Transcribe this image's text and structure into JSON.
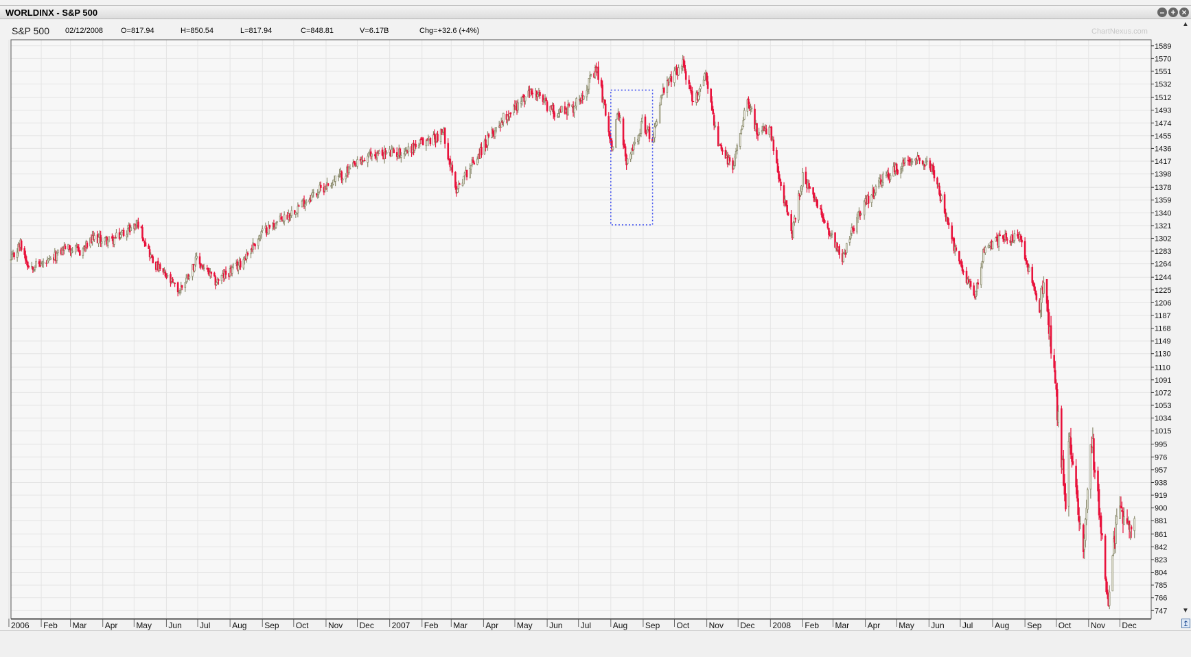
{
  "window": {
    "title": "WORLDINX - S&P 500"
  },
  "infobar": {
    "symbol": "S&P 500",
    "date": "02/12/2008",
    "open": "O=817.94",
    "high": "H=850.54",
    "low": "L=817.94",
    "close": "C=848.81",
    "volume": "V=6.17B",
    "change": "Chg=+32.6 (+4%)"
  },
  "watermark": "ChartNexus.com",
  "colors": {
    "down": "#e8133c",
    "up": "#8b8b6e",
    "grid": "#e4e4e4",
    "highlight_box": "#3b4cf0"
  },
  "chart_data": {
    "type": "candlestick",
    "y_ticks": [
      1589,
      1570,
      1551,
      1532,
      1512,
      1493,
      1474,
      1455,
      1436,
      1417,
      1398,
      1378,
      1359,
      1340,
      1321,
      1302,
      1283,
      1264,
      1244,
      1225,
      1206,
      1187,
      1168,
      1149,
      1130,
      1110,
      1091,
      1072,
      1053,
      1034,
      1015,
      995,
      976,
      957,
      938,
      919,
      900,
      881,
      861,
      842,
      823,
      804,
      785,
      766,
      747
    ],
    "ylim": [
      735,
      1598
    ],
    "x_labels": [
      "2006",
      "Feb",
      "Mar",
      "Apr",
      "May",
      "Jun",
      "Jul",
      "Aug",
      "Sep",
      "Oct",
      "Nov",
      "Dec",
      "2007",
      "Feb",
      "Mar",
      "Apr",
      "May",
      "Jun",
      "Jul",
      "Aug",
      "Sep",
      "Oct",
      "Nov",
      "Dec",
      "2008",
      "Feb",
      "Mar",
      "Apr",
      "May",
      "Jun",
      "Jul",
      "Aug",
      "Sep",
      "Oct",
      "Nov",
      "Dec"
    ],
    "x_range": [
      "2006-01-03",
      "2008-12-31"
    ],
    "grid": true,
    "highlight_box": {
      "x_from": "2007-08-01",
      "x_to": "2007-09-10",
      "y_from": 1322,
      "y_to": 1523
    },
    "close_anchors": [
      [
        "2006-01-03",
        1268
      ],
      [
        "2006-01-12",
        1294
      ],
      [
        "2006-01-20",
        1261
      ],
      [
        "2006-02-08",
        1265
      ],
      [
        "2006-02-24",
        1289
      ],
      [
        "2006-03-10",
        1282
      ],
      [
        "2006-03-24",
        1302
      ],
      [
        "2006-04-10",
        1298
      ],
      [
        "2006-04-21",
        1311
      ],
      [
        "2006-05-05",
        1325
      ],
      [
        "2006-05-19",
        1267
      ],
      [
        "2006-06-13",
        1223
      ],
      [
        "2006-06-30",
        1270
      ],
      [
        "2006-07-18",
        1237
      ],
      [
        "2006-08-10",
        1263
      ],
      [
        "2006-09-01",
        1311
      ],
      [
        "2006-09-25",
        1336
      ],
      [
        "2006-10-20",
        1368
      ],
      [
        "2006-11-20",
        1400
      ],
      [
        "2006-12-15",
        1427
      ],
      [
        "2007-01-12",
        1430
      ],
      [
        "2007-02-22",
        1459
      ],
      [
        "2007-03-05",
        1374
      ],
      [
        "2007-03-20",
        1411
      ],
      [
        "2007-04-20",
        1482
      ],
      [
        "2007-05-18",
        1522
      ],
      [
        "2007-06-07",
        1491
      ],
      [
        "2007-06-26",
        1497
      ],
      [
        "2007-07-19",
        1553
      ],
      [
        "2007-08-03",
        1433
      ],
      [
        "2007-08-08",
        1497
      ],
      [
        "2007-08-16",
        1411
      ],
      [
        "2007-08-31",
        1474
      ],
      [
        "2007-09-10",
        1451
      ],
      [
        "2007-09-19",
        1518
      ],
      [
        "2007-10-09",
        1565
      ],
      [
        "2007-10-19",
        1500
      ],
      [
        "2007-10-31",
        1549
      ],
      [
        "2007-11-12",
        1439
      ],
      [
        "2007-11-26",
        1407
      ],
      [
        "2007-12-10",
        1515
      ],
      [
        "2007-12-20",
        1454
      ],
      [
        "2007-12-31",
        1468
      ],
      [
        "2008-01-09",
        1390
      ],
      [
        "2008-01-22",
        1310
      ],
      [
        "2008-02-01",
        1395
      ],
      [
        "2008-02-15",
        1349
      ],
      [
        "2008-03-10",
        1273
      ],
      [
        "2008-03-26",
        1341
      ],
      [
        "2008-04-18",
        1390
      ],
      [
        "2008-05-19",
        1426
      ],
      [
        "2008-06-05",
        1404
      ],
      [
        "2008-06-27",
        1278
      ],
      [
        "2008-07-15",
        1214
      ],
      [
        "2008-07-23",
        1282
      ],
      [
        "2008-08-11",
        1305
      ],
      [
        "2008-08-28",
        1300
      ],
      [
        "2008-09-15",
        1192
      ],
      [
        "2008-09-19",
        1255
      ],
      [
        "2008-09-29",
        1106
      ],
      [
        "2008-10-10",
        899
      ],
      [
        "2008-10-13",
        1003
      ],
      [
        "2008-10-27",
        848
      ],
      [
        "2008-11-04",
        1005
      ],
      [
        "2008-11-20",
        752
      ],
      [
        "2008-11-28",
        896
      ],
      [
        "2008-12-12",
        879
      ],
      [
        "2008-12-15",
        869
      ]
    ]
  }
}
